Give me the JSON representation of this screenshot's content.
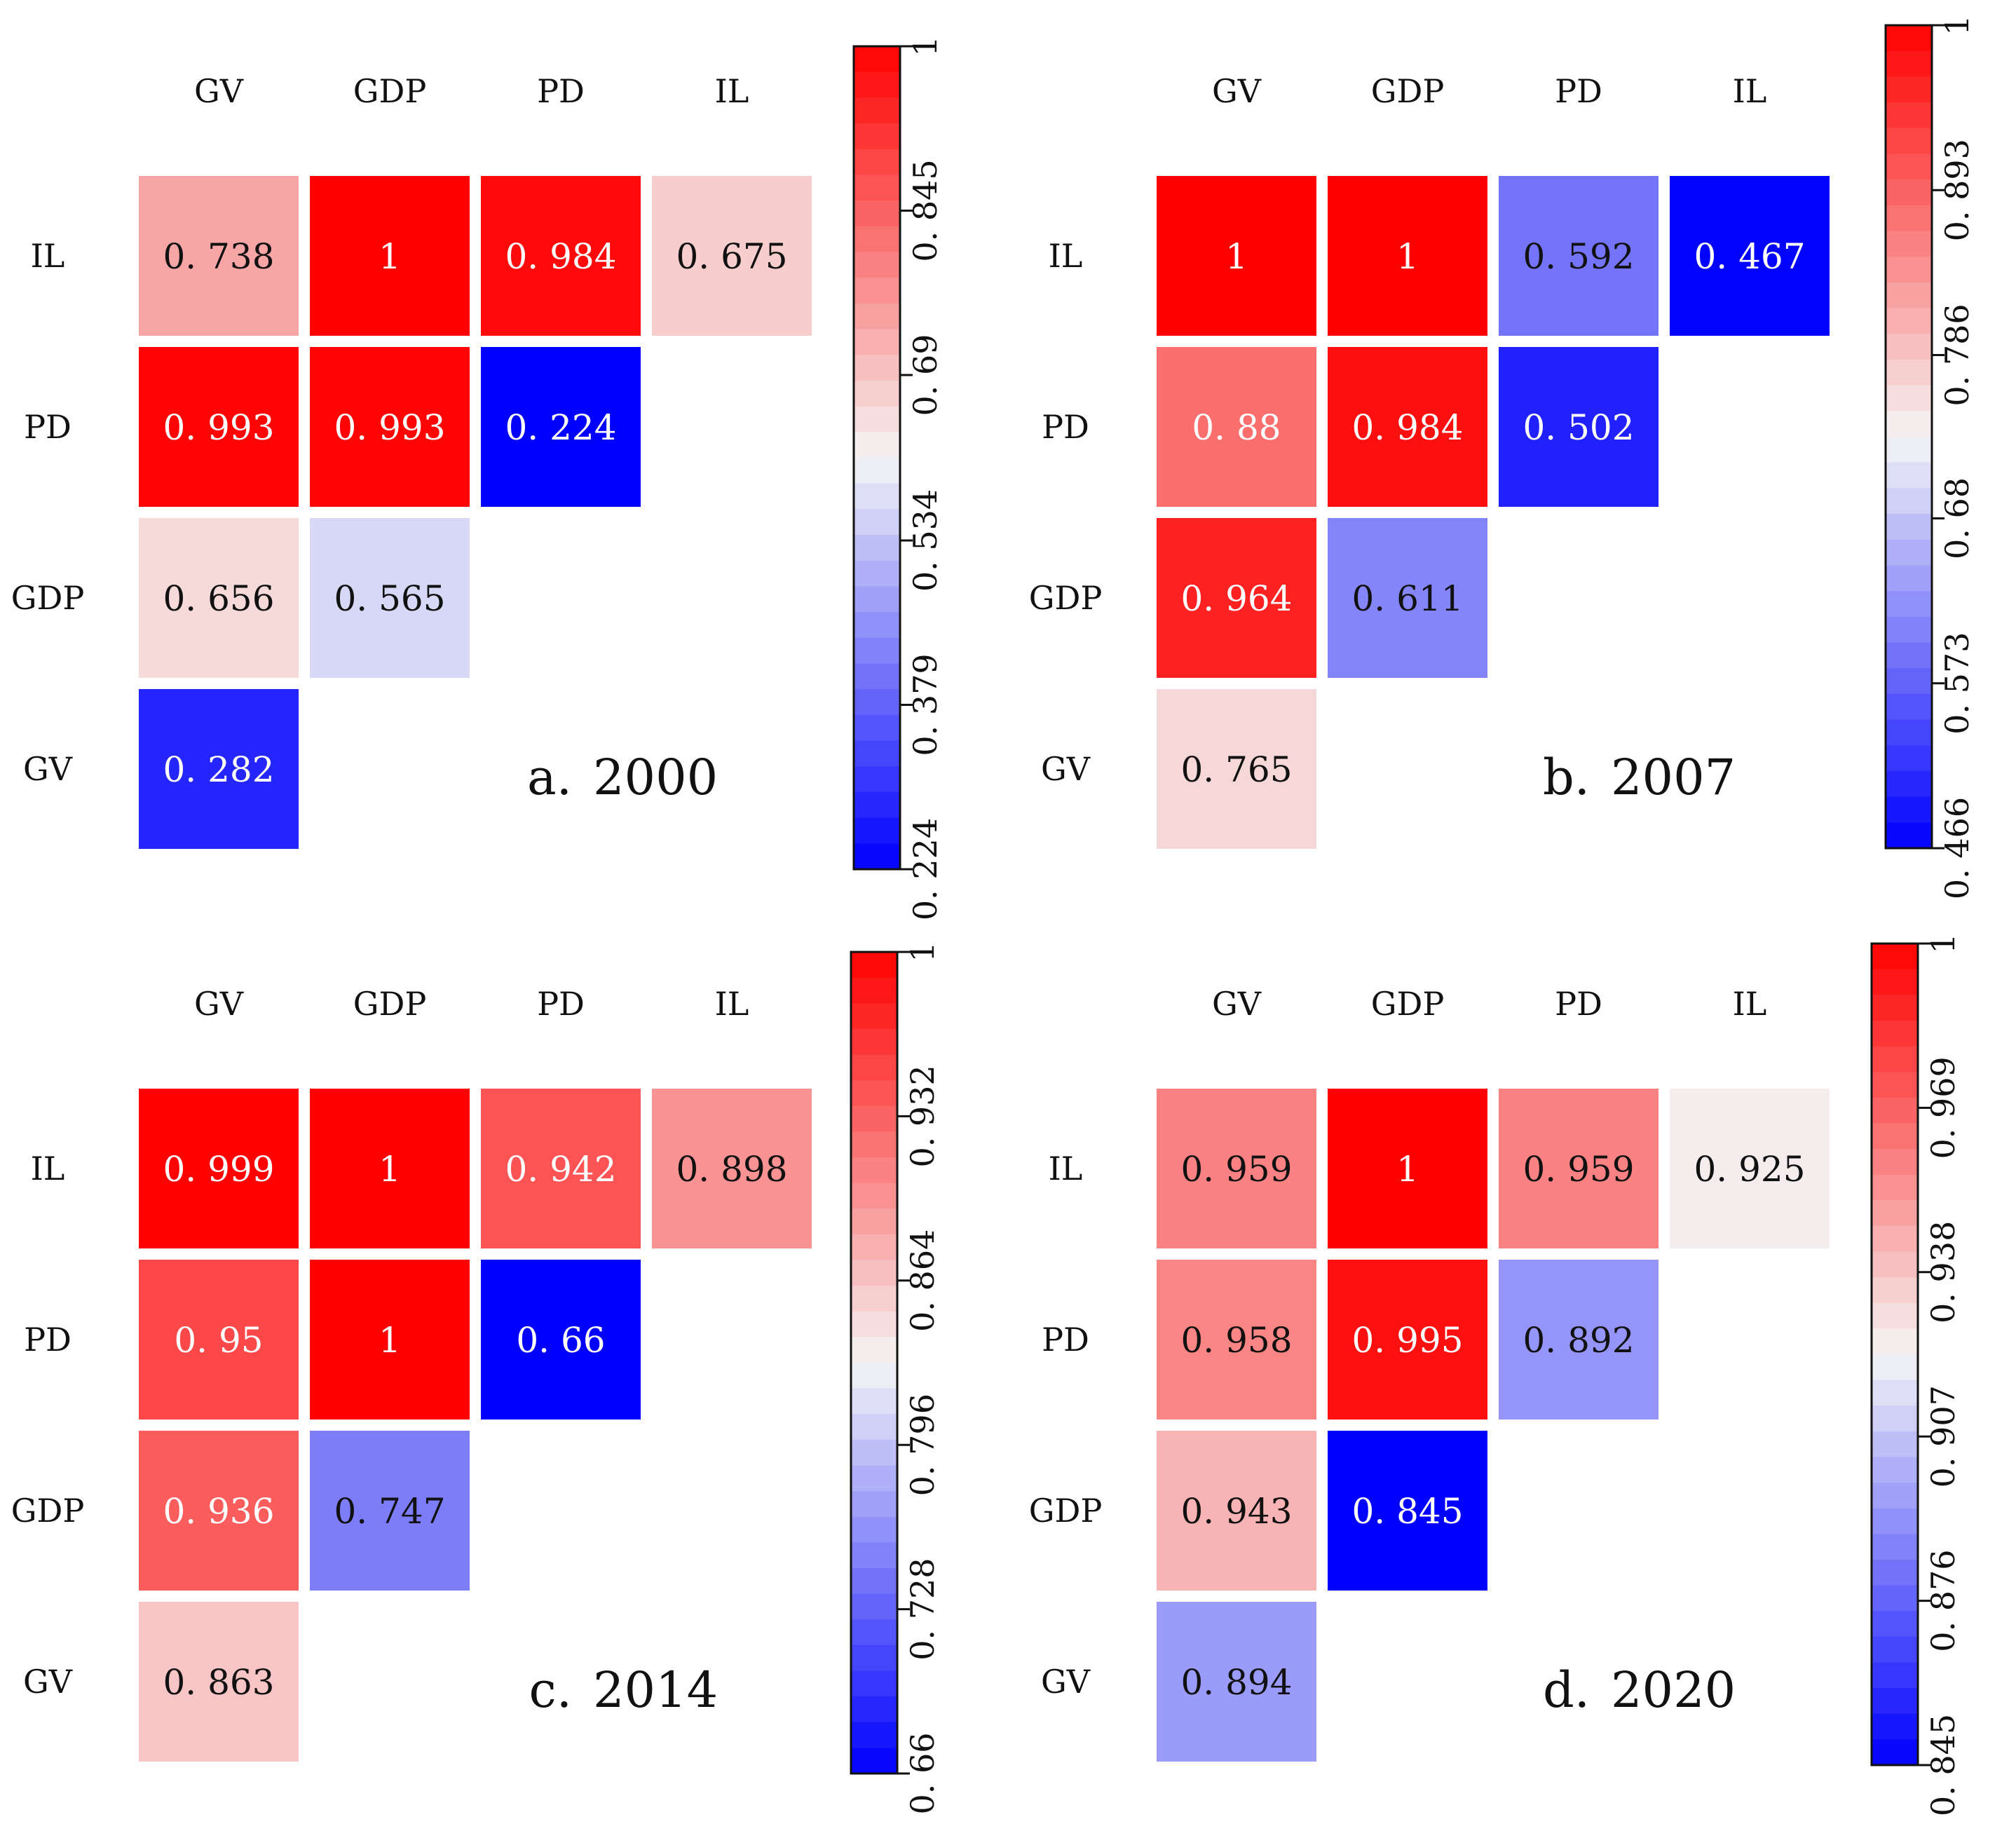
{
  "figure": {
    "type": "correlation-heatmap-grid",
    "color_low": "#0000ff",
    "color_mid": "#f5f5f5",
    "color_high": "#ff0000"
  },
  "chart_data": [
    {
      "type": "heatmap",
      "caption_letter": "a.",
      "caption_year": "2000",
      "columns": [
        "GV",
        "GDP",
        "PD",
        "IL"
      ],
      "rows": [
        "IL",
        "PD",
        "GDP",
        "GV"
      ],
      "cells": [
        [
          {
            "value": 0.738,
            "label": "0. 738"
          },
          {
            "value": 1,
            "label": "1"
          },
          {
            "value": 0.984,
            "label": "0. 984"
          },
          {
            "value": 0.675,
            "label": "0. 675"
          }
        ],
        [
          {
            "value": 0.993,
            "label": "0. 993"
          },
          {
            "value": 0.993,
            "label": "0. 993"
          },
          {
            "value": 0.224,
            "label": "0. 224"
          },
          null
        ],
        [
          {
            "value": 0.656,
            "label": "0. 656"
          },
          {
            "value": 0.565,
            "label": "0. 565"
          },
          null,
          null
        ],
        [
          {
            "value": 0.282,
            "label": "0. 282"
          },
          null,
          null,
          null
        ]
      ],
      "scale": {
        "min": 0.224,
        "max": 1
      },
      "ticks": [
        {
          "value": 1,
          "label": "1"
        },
        {
          "value": 0.845,
          "label": "0. 845"
        },
        {
          "value": 0.69,
          "label": "0. 69"
        },
        {
          "value": 0.534,
          "label": "0. 534"
        },
        {
          "value": 0.379,
          "label": "0. 379"
        },
        {
          "value": 0.224,
          "label": "0. 224"
        }
      ]
    },
    {
      "type": "heatmap",
      "caption_letter": "b.",
      "caption_year": "2007",
      "columns": [
        "GV",
        "GDP",
        "PD",
        "IL"
      ],
      "rows": [
        "IL",
        "PD",
        "GDP",
        "GV"
      ],
      "cells": [
        [
          {
            "value": 1,
            "label": "1"
          },
          {
            "value": 1,
            "label": "1"
          },
          {
            "value": 0.592,
            "label": "0. 592"
          },
          {
            "value": 0.467,
            "label": "0. 467"
          }
        ],
        [
          {
            "value": 0.88,
            "label": "0. 88"
          },
          {
            "value": 0.984,
            "label": "0. 984"
          },
          {
            "value": 0.502,
            "label": "0. 502"
          },
          null
        ],
        [
          {
            "value": 0.964,
            "label": "0. 964"
          },
          {
            "value": 0.611,
            "label": "0. 611"
          },
          null,
          null
        ],
        [
          {
            "value": 0.765,
            "label": "0. 765"
          },
          null,
          null,
          null
        ]
      ],
      "scale": {
        "min": 0.466,
        "max": 1
      },
      "ticks": [
        {
          "value": 1,
          "label": "1"
        },
        {
          "value": 0.893,
          "label": "0. 893"
        },
        {
          "value": 0.786,
          "label": "0. 786"
        },
        {
          "value": 0.68,
          "label": "0. 68"
        },
        {
          "value": 0.573,
          "label": "0. 573"
        },
        {
          "value": 0.466,
          "label": "0. 466"
        }
      ]
    },
    {
      "type": "heatmap",
      "caption_letter": "c.",
      "caption_year": "2014",
      "columns": [
        "GV",
        "GDP",
        "PD",
        "IL"
      ],
      "rows": [
        "IL",
        "PD",
        "GDP",
        "GV"
      ],
      "cells": [
        [
          {
            "value": 0.999,
            "label": "0. 999"
          },
          {
            "value": 1,
            "label": "1"
          },
          {
            "value": 0.942,
            "label": "0. 942"
          },
          {
            "value": 0.898,
            "label": "0. 898"
          }
        ],
        [
          {
            "value": 0.95,
            "label": "0. 95"
          },
          {
            "value": 1,
            "label": "1"
          },
          {
            "value": 0.66,
            "label": "0. 66"
          },
          null
        ],
        [
          {
            "value": 0.936,
            "label": "0. 936"
          },
          {
            "value": 0.747,
            "label": "0. 747"
          },
          null,
          null
        ],
        [
          {
            "value": 0.863,
            "label": "0. 863"
          },
          null,
          null,
          null
        ]
      ],
      "scale": {
        "min": 0.66,
        "max": 1
      },
      "ticks": [
        {
          "value": 1,
          "label": "1"
        },
        {
          "value": 0.932,
          "label": "0. 932"
        },
        {
          "value": 0.864,
          "label": "0. 864"
        },
        {
          "value": 0.796,
          "label": "0. 796"
        },
        {
          "value": 0.728,
          "label": "0. 728"
        },
        {
          "value": 0.66,
          "label": "0. 66"
        }
      ]
    },
    {
      "type": "heatmap",
      "caption_letter": "d.",
      "caption_year": "2020",
      "columns": [
        "GV",
        "GDP",
        "PD",
        "IL"
      ],
      "rows": [
        "IL",
        "PD",
        "GDP",
        "GV"
      ],
      "cells": [
        [
          {
            "value": 0.959,
            "label": "0. 959"
          },
          {
            "value": 1,
            "label": "1"
          },
          {
            "value": 0.959,
            "label": "0. 959"
          },
          {
            "value": 0.925,
            "label": "0. 925"
          }
        ],
        [
          {
            "value": 0.958,
            "label": "0. 958"
          },
          {
            "value": 0.995,
            "label": "0. 995"
          },
          {
            "value": 0.892,
            "label": "0. 892"
          },
          null
        ],
        [
          {
            "value": 0.943,
            "label": "0. 943"
          },
          {
            "value": 0.845,
            "label": "0. 845"
          },
          null,
          null
        ],
        [
          {
            "value": 0.894,
            "label": "0. 894"
          },
          null,
          null,
          null
        ]
      ],
      "scale": {
        "min": 0.845,
        "max": 1
      },
      "ticks": [
        {
          "value": 1,
          "label": "1"
        },
        {
          "value": 0.969,
          "label": "0. 969"
        },
        {
          "value": 0.938,
          "label": "0. 938"
        },
        {
          "value": 0.907,
          "label": "0. 907"
        },
        {
          "value": 0.876,
          "label": "0. 876"
        },
        {
          "value": 0.845,
          "label": "0. 845"
        }
      ]
    }
  ]
}
